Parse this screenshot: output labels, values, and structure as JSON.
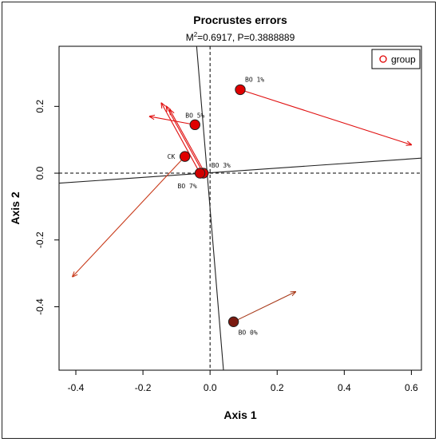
{
  "chart_data": {
    "type": "scatter",
    "title": "Procrustes errors",
    "subtitle_m": "M",
    "subtitle_sup": "2",
    "subtitle_rest": "=0.6917, P=0.3888889",
    "xlabel": "Axis 1",
    "ylabel": "Axis 2",
    "xlim": [
      -0.45,
      0.63
    ],
    "ylim": [
      -0.59,
      0.38
    ],
    "xticks": [
      "-0.4",
      "-0.2",
      "0.0",
      "0.2",
      "0.4",
      "0.6"
    ],
    "xtick_values": [
      -0.4,
      -0.2,
      0.0,
      0.2,
      0.4,
      0.6
    ],
    "yticks": [
      "-0.4",
      "-0.2",
      "0.0",
      "0.2"
    ],
    "ytick_values": [
      -0.4,
      -0.2,
      0.0,
      0.2
    ],
    "legend": {
      "label": "group",
      "position": "top-right",
      "marker_color": "#e00000"
    },
    "rotation_axes": [
      {
        "x1": -0.45,
        "y1": -0.03,
        "x2": 0.63,
        "y2": 0.045
      },
      {
        "x1": -0.04,
        "y1": 0.38,
        "x2": 0.04,
        "y2": -0.59
      }
    ],
    "reference_lines": {
      "x": 0.0,
      "y": 0.0
    },
    "arrows": [
      {
        "from": [
          0.09,
          0.25
        ],
        "to": [
          0.6,
          0.085
        ],
        "color": "#e01010"
      },
      {
        "from": [
          -0.045,
          0.145
        ],
        "to": [
          -0.18,
          0.17
        ],
        "color": "#e01010"
      },
      {
        "from": [
          -0.075,
          0.05
        ],
        "to": [
          -0.41,
          -0.31
        ],
        "color": "#c83a1a"
      },
      {
        "from": [
          -0.03,
          0.0
        ],
        "to": [
          -0.145,
          0.21
        ],
        "color": "#e01010"
      },
      {
        "from": [
          -0.02,
          0.0
        ],
        "to": [
          -0.13,
          0.2
        ],
        "color": "#e01010"
      },
      {
        "from": [
          -0.015,
          0.0
        ],
        "to": [
          -0.12,
          0.19
        ],
        "color": "#e01010"
      },
      {
        "from": [
          0.07,
          -0.445
        ],
        "to": [
          0.255,
          -0.355
        ],
        "color": "#a83a1a"
      }
    ],
    "points": [
      {
        "label": "BO 1%",
        "x": 0.09,
        "y": 0.25,
        "color": "#e00000",
        "lx": 6,
        "ly": -13,
        "anchor": "start"
      },
      {
        "label": "BO 5%",
        "x": -0.045,
        "y": 0.145,
        "color": "#e00000",
        "lx": -12,
        "ly": -12,
        "anchor": "start"
      },
      {
        "label": "CK",
        "x": -0.075,
        "y": 0.05,
        "color": "#e00000",
        "lx": -22,
        "ly": 0,
        "anchor": "start"
      },
      {
        "label": "BO 3%",
        "x": -0.02,
        "y": 0.0,
        "color": "#e00000",
        "lx": 10,
        "ly": -10,
        "anchor": "start"
      },
      {
        "label": "BO 7%",
        "x": -0.03,
        "y": 0.0,
        "color": "#d00000",
        "lx": -28,
        "ly": 16,
        "anchor": "start"
      },
      {
        "label": "BO 0%",
        "x": 0.07,
        "y": -0.445,
        "color": "#7a1a10",
        "lx": 6,
        "ly": 13,
        "anchor": "start"
      }
    ]
  }
}
